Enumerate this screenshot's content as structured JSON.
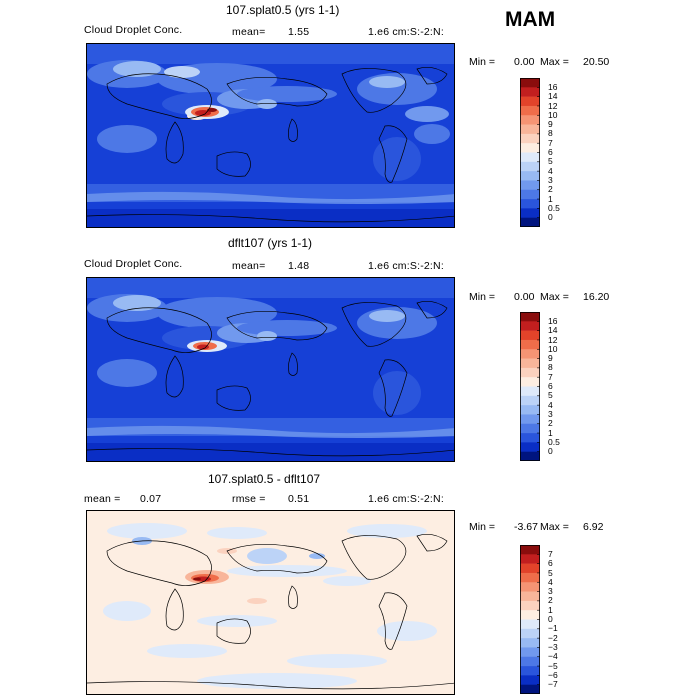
{
  "season": "MAM",
  "panels": [
    {
      "title": "107.splat0.5 (yrs 1-1)",
      "field": "Cloud Droplet Conc.",
      "mean_label": "mean=",
      "mean_value": "1.55",
      "units": "1.e6 cm:S:-2:N:",
      "min_label": "Min =",
      "min_value": "0.00",
      "max_label": "Max =",
      "max_value": "20.50",
      "scale": [
        "16",
        "14",
        "12",
        "10",
        "9",
        "8",
        "7",
        "6",
        "5",
        "4",
        "3",
        "2",
        "1",
        "0.5",
        "0"
      ],
      "colors": [
        "#8a0d0d",
        "#c21f1f",
        "#e2432a",
        "#ef6d4a",
        "#f59474",
        "#f8b59a",
        "#fbd2bf",
        "#fdeee2",
        "#dfeafa",
        "#bcd3f7",
        "#98baf3",
        "#7199ee",
        "#4d78e6",
        "#2a55dc",
        "#0a2ec5",
        "#00147f"
      ]
    },
    {
      "title": "dflt107 (yrs 1-1)",
      "field": "Cloud Droplet Conc.",
      "mean_label": "mean=",
      "mean_value": "1.48",
      "units": "1.e6 cm:S:-2:N:",
      "min_label": "Min =",
      "min_value": "0.00",
      "max_label": "Max =",
      "max_value": "16.20",
      "scale": [
        "16",
        "14",
        "12",
        "10",
        "9",
        "8",
        "7",
        "6",
        "5",
        "4",
        "3",
        "2",
        "1",
        "0.5",
        "0"
      ],
      "colors": [
        "#8a0d0d",
        "#c21f1f",
        "#e2432a",
        "#ef6d4a",
        "#f59474",
        "#f8b59a",
        "#fbd2bf",
        "#fdeee2",
        "#dfeafa",
        "#bcd3f7",
        "#98baf3",
        "#7199ee",
        "#4d78e6",
        "#2a55dc",
        "#0a2ec5",
        "#00147f"
      ]
    },
    {
      "title": "107.splat0.5 - dflt107",
      "mean_label": "mean =",
      "mean_value": "0.07",
      "rmse_label": "rmse =",
      "rmse_value": "0.51",
      "units": "1.e6 cm:S:-2:N:",
      "min_label": "Min =",
      "min_value": "-3.67",
      "max_label": "Max =",
      "max_value": "6.92",
      "scale": [
        "7",
        "6",
        "5",
        "4",
        "3",
        "2",
        "1",
        "0",
        "−1",
        "−2",
        "−3",
        "−4",
        "−5",
        "−6",
        "−7"
      ],
      "colors": [
        "#8a0d0d",
        "#c21f1f",
        "#e2432a",
        "#ef6d4a",
        "#f59474",
        "#f8b59a",
        "#fbd2bf",
        "#fdeee2",
        "#dfeafa",
        "#bcd3f7",
        "#98baf3",
        "#7199ee",
        "#4d78e6",
        "#2a55dc",
        "#0a2ec5",
        "#00147f"
      ]
    }
  ]
}
